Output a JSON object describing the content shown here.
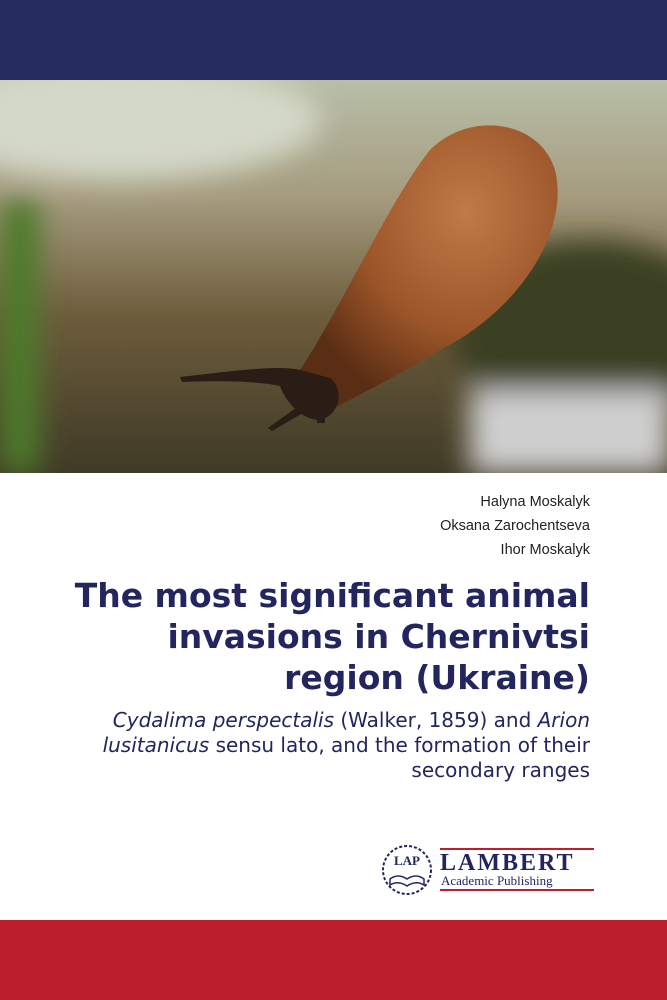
{
  "authors": [
    "Halyna Moskalyk",
    "Oksana Zarochentseva",
    "Ihor Moskalyk"
  ],
  "title": [
    "The most significant animal",
    "invasions in Chernivtsi",
    "region (Ukraine)"
  ],
  "subtitle": [
    [
      {
        "text": "Cydalima perspectalis",
        "italic": true
      },
      {
        "text": " (Walker, 1859) and ",
        "italic": false
      },
      {
        "text": "Arion",
        "italic": true
      }
    ],
    [
      {
        "text": "lusitanicus",
        "italic": true
      },
      {
        "text": " sensu lato, and the formation of their",
        "italic": false
      }
    ],
    [
      {
        "text": "secondary ranges",
        "italic": false
      }
    ]
  ],
  "publisher": {
    "emblem": "LAP",
    "name": "LAMBERT",
    "tagline": "Academic Publishing"
  }
}
